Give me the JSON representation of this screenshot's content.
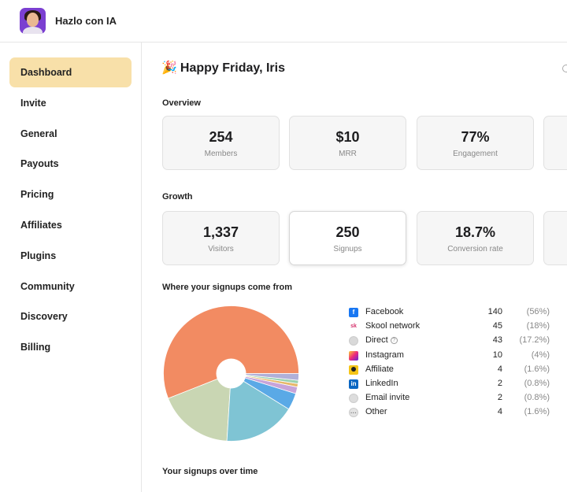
{
  "app": {
    "brand": "Hazlo con IA"
  },
  "sidebar": {
    "items": [
      {
        "label": "Dashboard"
      },
      {
        "label": "Invite"
      },
      {
        "label": "General"
      },
      {
        "label": "Payouts"
      },
      {
        "label": "Pricing"
      },
      {
        "label": "Affiliates"
      },
      {
        "label": "Plugins"
      },
      {
        "label": "Community"
      },
      {
        "label": "Discovery"
      },
      {
        "label": "Billing"
      }
    ],
    "active": "Dashboard"
  },
  "main": {
    "greeting_emoji": "🎉",
    "greeting": "Happy Friday, Iris",
    "overview_label": "Overview",
    "overview_cards": [
      {
        "value": "254",
        "label": "Members"
      },
      {
        "value": "$10",
        "label": "MRR"
      },
      {
        "value": "77%",
        "label": "Engagement"
      }
    ],
    "growth_label": "Growth",
    "growth_cards": [
      {
        "value": "1,337",
        "label": "Visitors"
      },
      {
        "value": "250",
        "label": "Signups"
      },
      {
        "value": "18.7%",
        "label": "Conversion rate"
      }
    ],
    "signups_source_label": "Where your signups come from",
    "signups_time_label": "Your signups over time"
  },
  "legend": [
    {
      "name": "Facebook",
      "count": "140",
      "pct": "(56%)",
      "icon": "facebook-icon",
      "icon_glyph": "f",
      "icon_color": "#1877f2"
    },
    {
      "name": "Skool network",
      "count": "45",
      "pct": "(18%)",
      "icon": "skool-icon",
      "icon_glyph": "sk",
      "icon_color": "#ffffff"
    },
    {
      "name": "Direct",
      "count": "43",
      "pct": "(17.2%)",
      "icon": "globe-icon",
      "icon_glyph": "",
      "icon_color": "#d9d9d9"
    },
    {
      "name": "Instagram",
      "count": "10",
      "pct": "(4%)",
      "icon": "instagram-icon",
      "icon_glyph": "",
      "icon_color": "#e1306c"
    },
    {
      "name": "Affiliate",
      "count": "4",
      "pct": "(1.6%)",
      "icon": "affiliate-icon",
      "icon_glyph": "",
      "icon_color": "#f5c518"
    },
    {
      "name": "LinkedIn",
      "count": "2",
      "pct": "(0.8%)",
      "icon": "linkedin-icon",
      "icon_glyph": "in",
      "icon_color": "#0a66c2"
    },
    {
      "name": "Email invite",
      "count": "2",
      "pct": "(0.8%)",
      "icon": "email-icon",
      "icon_glyph": "",
      "icon_color": "#dddddd"
    },
    {
      "name": "Other",
      "count": "4",
      "pct": "(1.6%)",
      "icon": "more-icon",
      "icon_glyph": "···",
      "icon_color": "#e3e3e3"
    }
  ],
  "chart_data": {
    "type": "pie",
    "categories": [
      "Facebook",
      "Skool network",
      "Direct",
      "Instagram",
      "Affiliate",
      "LinkedIn",
      "Email invite",
      "Other"
    ],
    "values": [
      140,
      45,
      43,
      10,
      4,
      2,
      2,
      4
    ],
    "colors": [
      "#f28b62",
      "#c9d6b3",
      "#7fc4d4",
      "#5aa9e6",
      "#c7a4d9",
      "#e6b86a",
      "#9ad1b0",
      "#b0b0d8"
    ],
    "donut_hole": true
  }
}
